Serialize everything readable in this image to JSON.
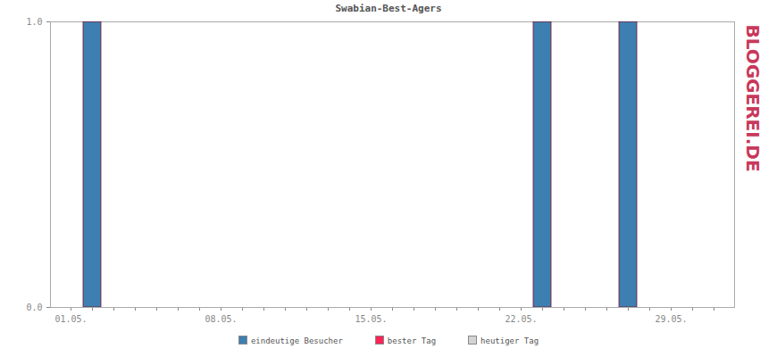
{
  "chart_data": {
    "type": "bar",
    "title": "Swabian-Best-Agers",
    "categories": [
      "01.05.",
      null,
      null,
      null,
      null,
      null,
      null,
      "08.05.",
      null,
      null,
      null,
      null,
      null,
      null,
      "15.05.",
      null,
      null,
      null,
      null,
      null,
      null,
      "22.05.",
      null,
      null,
      null,
      null,
      null,
      null,
      "29.05.",
      null,
      null
    ],
    "series": [
      {
        "name": "eindeutige Besucher",
        "color": "#3d7fb0",
        "values": [
          0,
          1,
          0,
          0,
          0,
          0,
          0,
          0,
          0,
          0,
          0,
          0,
          0,
          0,
          0,
          0,
          0,
          0,
          0,
          0,
          0,
          0,
          1,
          0,
          0,
          0,
          1,
          0,
          0,
          0,
          0
        ]
      },
      {
        "name": "bester Tag",
        "color": "#ff2255",
        "values": [
          null,
          1,
          null,
          null,
          null,
          null,
          null,
          null,
          null,
          null,
          null,
          null,
          null,
          null,
          null,
          null,
          null,
          null,
          null,
          null,
          null,
          null,
          1,
          null,
          null,
          null,
          1,
          null,
          null,
          null,
          null
        ]
      },
      {
        "name": "heutiger Tag",
        "color": "#d3d3d3",
        "values": [
          null,
          null,
          null,
          null,
          null,
          null,
          null,
          null,
          null,
          null,
          null,
          null,
          null,
          null,
          null,
          null,
          null,
          null,
          null,
          null,
          null,
          null,
          null,
          null,
          null,
          null,
          null,
          null,
          null,
          null,
          null
        ]
      }
    ],
    "ylim": [
      0,
      1
    ],
    "yticks": [
      0,
      1
    ],
    "grid": true,
    "legend": "bottom",
    "annotations": [
      "BLOGGEREI.DE"
    ]
  }
}
